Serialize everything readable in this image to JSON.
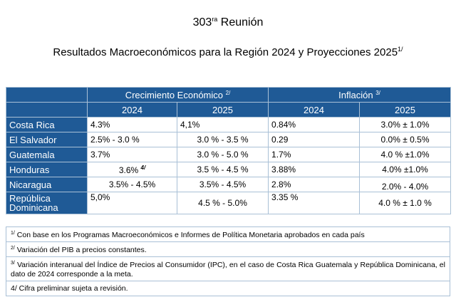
{
  "header": {
    "meeting_number": "303",
    "meeting_suffix": "ra",
    "meeting_word": "Reunión",
    "results_title": "Resultados Macroeconómicos para la Región 2024 y Proyecciones 2025",
    "results_title_note": "1/"
  },
  "table": {
    "group_growth": "Crecimiento Económico",
    "group_growth_note": "2/",
    "group_inflation": "Inflación",
    "group_inflation_note": "3/",
    "years": [
      "2024",
      "2025",
      "2024",
      "2025"
    ],
    "rows": [
      {
        "country": "Costa Rica",
        "growth_2024": "4.3%",
        "growth_2025": "4,1%",
        "infl_2024": "0.84%",
        "infl_2025": "3.0% ± 1.0%"
      },
      {
        "country": "El Salvador",
        "growth_2024": "2.5% - 3.0 %",
        "growth_2025": "3.0 % - 3.5 %",
        "infl_2024": "0.29",
        "infl_2025": "0.0% ± 0.5%"
      },
      {
        "country": "Guatemala",
        "growth_2024": "3.7%",
        "growth_2025": "3.0 % - 5.0 %",
        "infl_2024": "1.7%",
        "infl_2025": "4.0 % ±1.0%"
      },
      {
        "country": "Honduras",
        "growth_2024": "3.6%",
        "growth_2024_note": "4/",
        "growth_2025": "3.5 % - 4.5 %",
        "infl_2024": "3.88%",
        "infl_2025": "4.0% ±1.0%"
      },
      {
        "country": "Nicaragua",
        "growth_2024": "3.5% - 4.5%",
        "growth_2025": "3.5% - 4.5%",
        "infl_2024": "2.8%",
        "infl_2025": "2.0% - 4.0%"
      },
      {
        "country": "República Dominicana",
        "growth_2024": "5,0%",
        "growth_2025": "4.5 % - 5.0%",
        "infl_2024": "3.35 %",
        "infl_2025": "4.0 % ± 1.0 %"
      }
    ]
  },
  "notes": [
    {
      "mark": "1/",
      "text": "Con base en los Programas Macroeconómicos e Informes de Política Monetaria aprobados en cada país"
    },
    {
      "mark": "2/",
      "text": "Variación del PIB a precios constantes."
    },
    {
      "mark": "3/",
      "text": "Variación interanual del Índice de Precios al Consumidor (IPC), en el caso de Costa Rica Guatemala y República Dominicana, el dato de 2024 corresponde a la meta."
    },
    {
      "mark": "",
      "text": "4/ Cifra preliminar sujeta a revisión."
    }
  ]
}
